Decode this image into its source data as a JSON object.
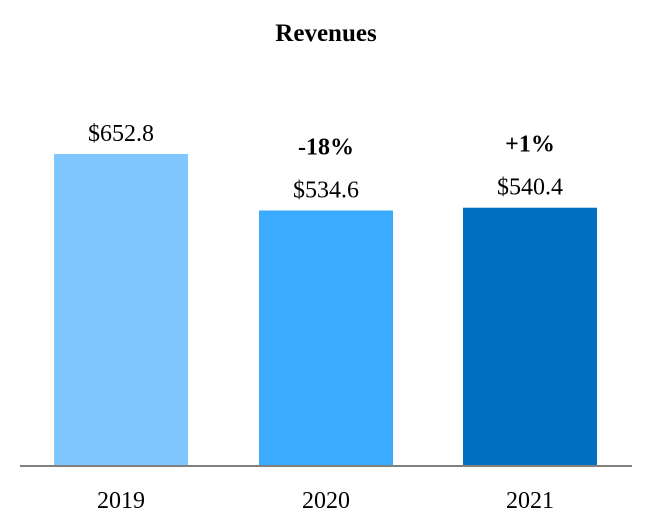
{
  "chart_data": {
    "type": "bar",
    "title": "Revenues",
    "categories": [
      "2019",
      "2020",
      "2021"
    ],
    "values": [
      652.8,
      534.6,
      540.4
    ],
    "value_labels": [
      "$652.8",
      "$534.6",
      "$540.4"
    ],
    "change_labels": [
      "",
      "-18%",
      "+1%"
    ],
    "colors": [
      "#80c6ff",
      "#3aabff",
      "#0070c0"
    ],
    "axis_color": "#808080",
    "xlabel": "",
    "ylabel": "",
    "ylim": [
      0,
      652.8
    ],
    "grid": false,
    "legend": "none"
  }
}
